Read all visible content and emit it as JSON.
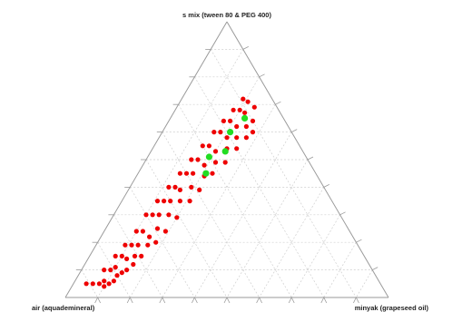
{
  "chart_data": {
    "type": "scatter",
    "subtype": "ternary",
    "vertex_labels": {
      "top": "s mix (tween 80 & PEG 400)",
      "left": "air (aquademineral)",
      "right": "minyak (grapeseed oil)"
    },
    "grid": true,
    "grid_step": 0.1,
    "colors": {
      "red": "#ee0000",
      "green": "#22dd22",
      "axis": "#9a9a9a",
      "grid": "#cfcfcf"
    },
    "series": [
      {
        "color": "red",
        "points": [
          [
            0.91,
            0.04
          ],
          [
            0.89,
            0.06
          ],
          [
            0.87,
            0.08
          ],
          [
            0.86,
            0.1
          ],
          [
            0.84,
            0.11
          ],
          [
            0.82,
            0.12
          ],
          [
            0.85,
            0.09
          ],
          [
            0.83,
            0.07
          ],
          [
            0.81,
            0.09
          ],
          [
            0.8,
            0.12
          ],
          [
            0.78,
            0.13
          ],
          [
            0.79,
            0.1
          ],
          [
            0.77,
            0.08
          ],
          [
            0.75,
            0.1
          ],
          [
            0.74,
            0.12
          ],
          [
            0.76,
            0.14
          ],
          [
            0.72,
            0.09
          ],
          [
            0.7,
            0.11
          ],
          [
            0.68,
            0.13
          ],
          [
            0.71,
            0.14
          ],
          [
            0.66,
            0.1
          ],
          [
            0.64,
            0.12
          ],
          [
            0.63,
            0.15
          ],
          [
            0.65,
            0.16
          ],
          [
            0.6,
            0.1
          ],
          [
            0.58,
            0.12
          ],
          [
            0.56,
            0.14
          ],
          [
            0.59,
            0.16
          ],
          [
            0.54,
            0.11
          ],
          [
            0.52,
            0.13
          ],
          [
            0.5,
            0.15
          ],
          [
            0.53,
            0.17
          ],
          [
            0.48,
            0.12
          ],
          [
            0.46,
            0.14
          ],
          [
            0.45,
            0.16
          ],
          [
            0.47,
            0.18
          ],
          [
            0.42,
            0.13
          ],
          [
            0.4,
            0.15
          ],
          [
            0.38,
            0.17
          ],
          [
            0.41,
            0.19
          ],
          [
            0.36,
            0.14
          ],
          [
            0.34,
            0.16
          ],
          [
            0.33,
            0.19
          ],
          [
            0.35,
            0.21
          ],
          [
            0.3,
            0.15
          ],
          [
            0.28,
            0.17
          ],
          [
            0.27,
            0.2
          ],
          [
            0.29,
            0.22
          ],
          [
            0.24,
            0.16
          ],
          [
            0.22,
            0.18
          ],
          [
            0.21,
            0.21
          ],
          [
            0.23,
            0.23
          ],
          [
            0.19,
            0.17
          ],
          [
            0.17,
            0.19
          ],
          [
            0.16,
            0.22
          ],
          [
            0.18,
            0.24
          ],
          [
            0.14,
            0.18
          ],
          [
            0.12,
            0.2
          ],
          [
            0.11,
            0.22
          ],
          [
            0.13,
            0.25
          ],
          [
            0.09,
            0.19
          ],
          [
            0.08,
            0.21
          ],
          [
            0.07,
            0.24
          ],
          [
            0.1,
            0.26
          ],
          [
            0.62,
            0.18
          ],
          [
            0.57,
            0.19
          ],
          [
            0.51,
            0.2
          ],
          [
            0.44,
            0.21
          ],
          [
            0.39,
            0.22
          ],
          [
            0.32,
            0.23
          ],
          [
            0.26,
            0.25
          ],
          [
            0.2,
            0.26
          ],
          [
            0.15,
            0.27
          ],
          [
            0.12,
            0.28
          ],
          [
            0.69,
            0.16
          ],
          [
            0.73,
            0.15
          ]
        ]
      },
      {
        "color": "green",
        "points": [
          [
            0.12,
            0.23
          ],
          [
            0.19,
            0.21
          ],
          [
            0.24,
            0.23
          ],
          [
            0.3,
            0.19
          ],
          [
            0.34,
            0.21
          ]
        ]
      }
    ]
  }
}
